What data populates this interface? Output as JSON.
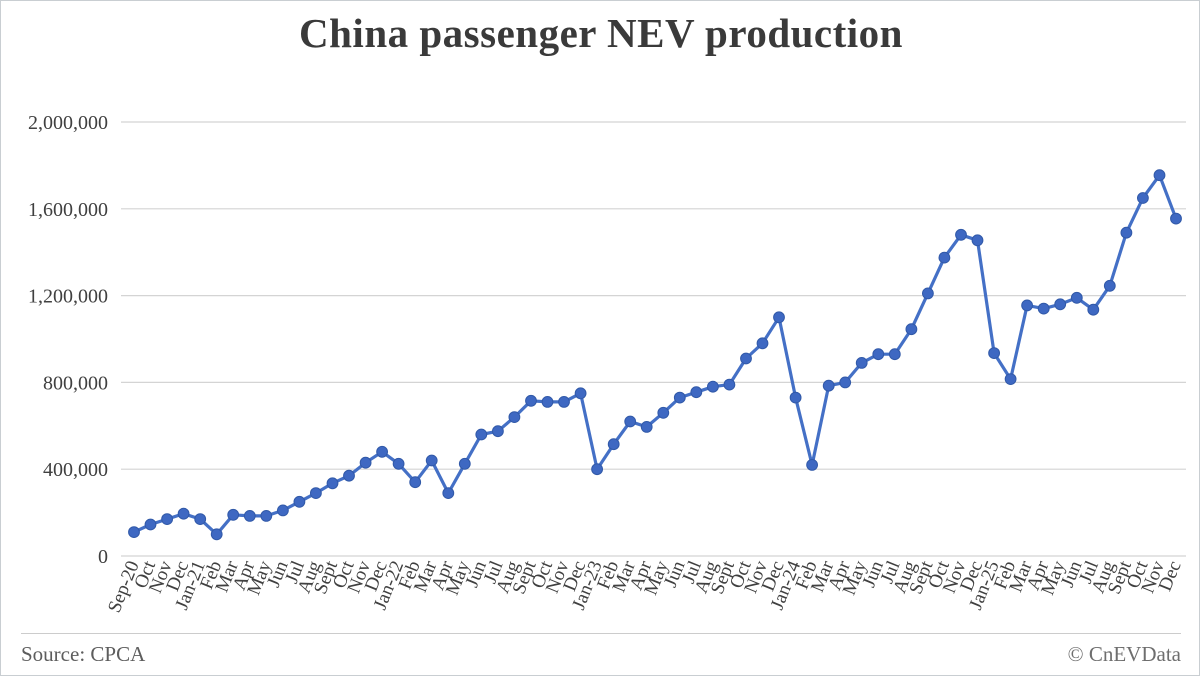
{
  "page": {
    "title": "China passenger NEV production"
  },
  "footer": {
    "source": "Source: CPCA",
    "copyright": "© CnEVData"
  },
  "colors": {
    "line": "#4470C6",
    "marker": "#3E68C2",
    "marker_stroke": "#3159A8",
    "gridline": "#D4D4D4",
    "axis_text": "#404040",
    "title_text": "#3A3A3A",
    "footer_text": "#5D5D5D",
    "border": "#C9CED2"
  },
  "chart_data": {
    "type": "line",
    "title": "China passenger NEV production",
    "xlabel": "",
    "ylabel": "",
    "ylim": [
      0,
      2000000
    ],
    "ytick_step": 400000,
    "ytick_labels": [
      "0",
      "400,000",
      "800,000",
      "1,200,000",
      "1,600,000",
      "2,000,000"
    ],
    "grid": "horizontal",
    "legend": "none",
    "series_name": "China passenger NEV production (units)",
    "categories": [
      "Sep-20",
      "Oct",
      "Nov",
      "Dec",
      "Jan-21",
      "Feb",
      "Mar",
      "Apr",
      "May",
      "Jun",
      "Jul",
      "Aug",
      "Sept",
      "Oct",
      "Nov",
      "Dec",
      "Jan-22",
      "Feb",
      "Mar",
      "Apr",
      "May",
      "Jun",
      "Jul",
      "Aug",
      "Sept",
      "Oct",
      "Nov",
      "Dec",
      "Jan-23",
      "Feb",
      "Mar",
      "Apr",
      "May",
      "Jun",
      "Jul",
      "Aug",
      "Sept",
      "Oct",
      "Nov",
      "Dec",
      "Jan-24",
      "Feb",
      "Mar",
      "Apr",
      "May",
      "Jun",
      "Jul",
      "Aug",
      "Sept",
      "Oct",
      "Nov",
      "Dec",
      "Jan-25",
      "Feb",
      "Mar",
      "Apr",
      "May",
      "Jun",
      "Jul",
      "Aug",
      "Sept",
      "Oct",
      "Nov",
      "Dec"
    ],
    "values": [
      110000,
      145000,
      170000,
      195000,
      170000,
      100000,
      190000,
      185000,
      185000,
      210000,
      250000,
      290000,
      335000,
      370000,
      430000,
      480000,
      425000,
      340000,
      440000,
      290000,
      425000,
      560000,
      575000,
      640000,
      715000,
      710000,
      710000,
      750000,
      400000,
      515000,
      620000,
      595000,
      660000,
      730000,
      755000,
      780000,
      790000,
      910000,
      980000,
      1100000,
      730000,
      420000,
      785000,
      800000,
      890000,
      930000,
      930000,
      1045000,
      1210000,
      1375000,
      1480000,
      1455000,
      935000,
      815000,
      1155000,
      1140000,
      1160000,
      1190000,
      1135000,
      1245000,
      1490000,
      1650000,
      1755000,
      1555000
    ]
  }
}
